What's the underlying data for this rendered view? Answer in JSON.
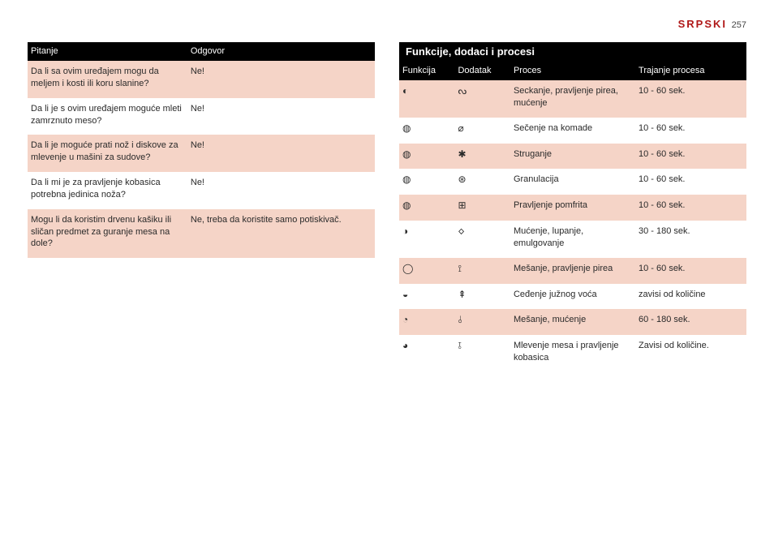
{
  "header": {
    "language": "SRPSKI",
    "page_number": "257"
  },
  "left_table": {
    "headers": [
      "Pitanje",
      "Odgovor"
    ],
    "rows": [
      {
        "q": "Da li sa ovim uređajem mogu da meljem i kosti ili koru slanine?",
        "a": "Ne!",
        "alt": true
      },
      {
        "q": "Da li je s ovim uređajem moguće mleti zamrznuto meso?",
        "a": "Ne!",
        "alt": false
      },
      {
        "q": "Da li je moguće prati nož i diskove za mlevenje u mašini za sudove?",
        "a": "Ne!",
        "alt": true
      },
      {
        "q": "Da li mi je za pravljenje kobasica potrebna jedinica noža?",
        "a": "Ne!",
        "alt": false
      },
      {
        "q": "Mogu li da koristim drvenu kašiku ili sličan predmet za guranje mesa na dole?",
        "a": "Ne, treba da koristite samo potiskivač.",
        "alt": true
      }
    ]
  },
  "right_section": {
    "title": "Funkcije, dodaci i procesi",
    "headers": [
      "Funkcija",
      "Dodatak",
      "Proces",
      "Trajanje procesa"
    ],
    "rows": [
      {
        "func_icon": "◐",
        "add_icon": "ᔓ",
        "proces": "Seckanje, pravljenje pirea, mućenje",
        "trajanje": "10 - 60 sek.",
        "alt": true
      },
      {
        "func_icon": "◍",
        "add_icon": "⌀",
        "proces": "Sečenje na komade",
        "trajanje": "10 - 60 sek.",
        "alt": false
      },
      {
        "func_icon": "◍",
        "add_icon": "✱",
        "proces": "Struganje",
        "trajanje": "10 - 60 sek.",
        "alt": true
      },
      {
        "func_icon": "◍",
        "add_icon": "⊛",
        "proces": "Granulacija",
        "trajanje": "10 - 60 sek.",
        "alt": false
      },
      {
        "func_icon": "◍",
        "add_icon": "⊞",
        "proces": "Pravljenje pomfrita",
        "trajanje": "10 - 60 sek.",
        "alt": true
      },
      {
        "func_icon": "◑",
        "add_icon": "🝔",
        "proces": "Mućenje, lupanje, emulgovanje",
        "trajanje": "30 - 180 sek.",
        "alt": false
      },
      {
        "func_icon": "◯",
        "add_icon": "⟟",
        "proces": "Mešanje, pravljenje pirea",
        "trajanje": "10 - 60 sek.",
        "alt": true
      },
      {
        "func_icon": "◒",
        "add_icon": "⇞",
        "proces": "Ceđenje južnog voća",
        "trajanje": "zavisi od količine",
        "alt": false
      },
      {
        "func_icon": "◔",
        "add_icon": "⫰",
        "proces": "Mešanje, mućenje",
        "trajanje": "60 - 180 sek.",
        "alt": true
      },
      {
        "func_icon": "◕",
        "add_icon": "⫱",
        "proces": "Mlevenje mesa i pravljenje kobasica",
        "trajanje": "Zavisi od količine.",
        "alt": false
      }
    ]
  },
  "colors": {
    "alt_row_bg": "#f5d4c7",
    "header_bg": "#000000",
    "header_fg": "#ffffff",
    "accent_red": "#b01818",
    "text": "#2a2a2a"
  }
}
